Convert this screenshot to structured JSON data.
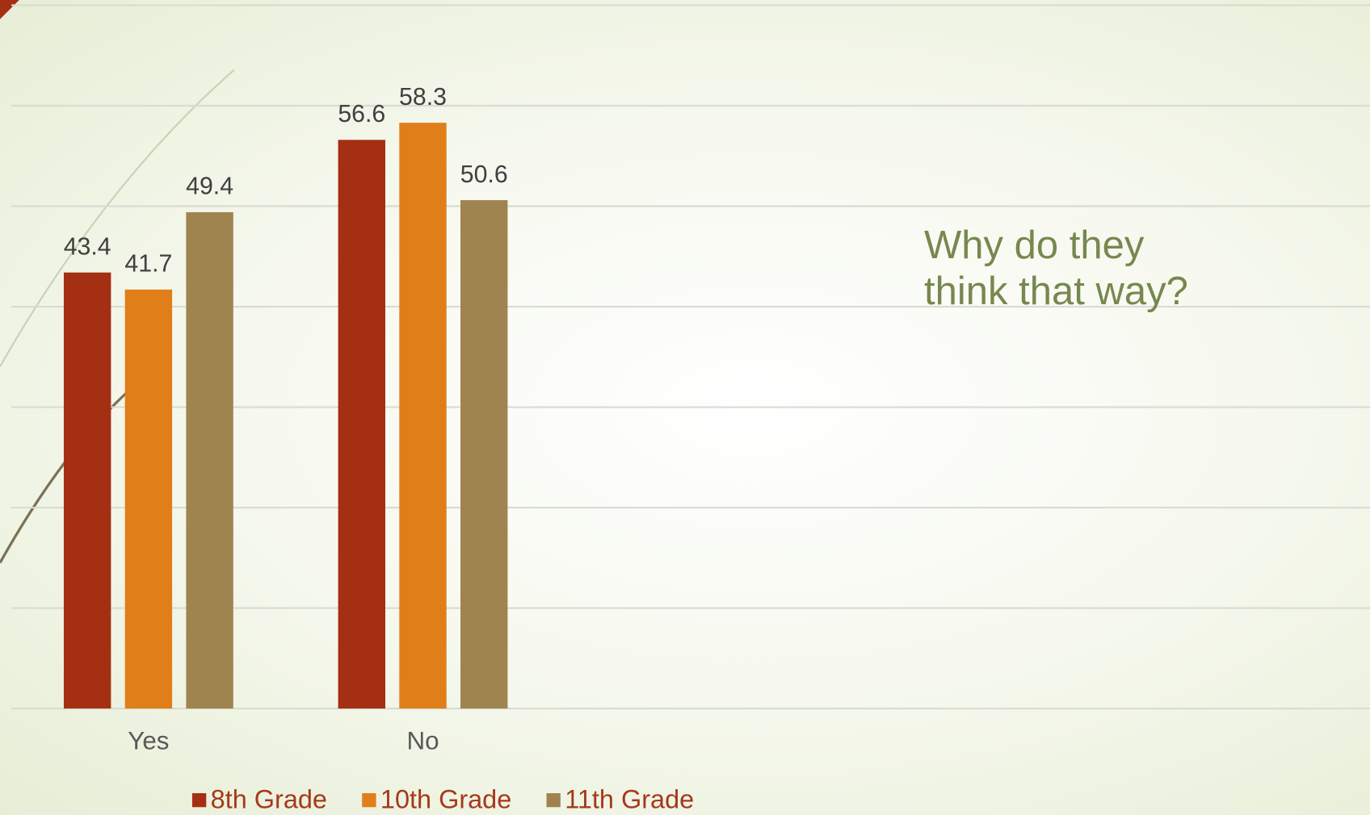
{
  "chart_data": {
    "type": "bar",
    "annotation": "Why do they think that way?",
    "categories": [
      "Yes",
      "No"
    ],
    "series": [
      {
        "name": "8th Grade",
        "color": "#a52f12",
        "values": [
          43.4,
          56.6
        ]
      },
      {
        "name": "10th Grade",
        "color": "#e07e1a",
        "values": [
          41.7,
          58.3
        ]
      },
      {
        "name": "11th Grade",
        "color": "#a08450",
        "values": [
          49.4,
          50.6
        ]
      }
    ],
    "ylim": [
      0,
      70
    ],
    "yticks": [
      0,
      10,
      20,
      30,
      40,
      50,
      60,
      70
    ],
    "grid": true,
    "legend": "bottom"
  }
}
